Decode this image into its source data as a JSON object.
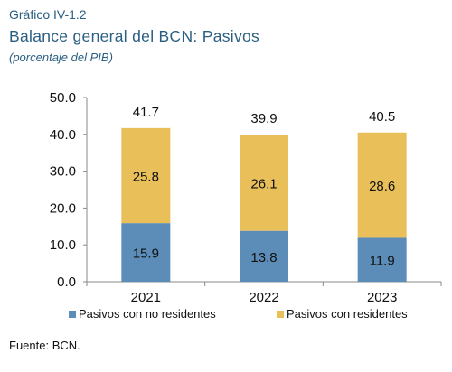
{
  "header": {
    "label": "Gráfico IV-1.2",
    "title": "Balance general del BCN: Pasivos",
    "subtitle": "(porcentaje del PIB)"
  },
  "source": "Fuente: BCN.",
  "colors": {
    "no_residentes": "#5b8db8",
    "residentes": "#e8bf58",
    "axis": "#888888",
    "text": "#111111"
  },
  "chart_data": {
    "type": "bar",
    "stacked": true,
    "categories": [
      "2021",
      "2022",
      "2023"
    ],
    "series": [
      {
        "name": "Pasivos con no residentes",
        "values": [
          15.9,
          13.8,
          11.9
        ]
      },
      {
        "name": "Pasivos con residentes",
        "values": [
          25.8,
          26.1,
          28.6
        ]
      }
    ],
    "totals": [
      41.7,
      39.9,
      40.5
    ],
    "ylim": [
      0,
      50
    ],
    "yticks": [
      "0.0",
      "10.0",
      "20.0",
      "30.0",
      "40.0",
      "50.0"
    ],
    "grid": false,
    "legend_position": "bottom"
  }
}
